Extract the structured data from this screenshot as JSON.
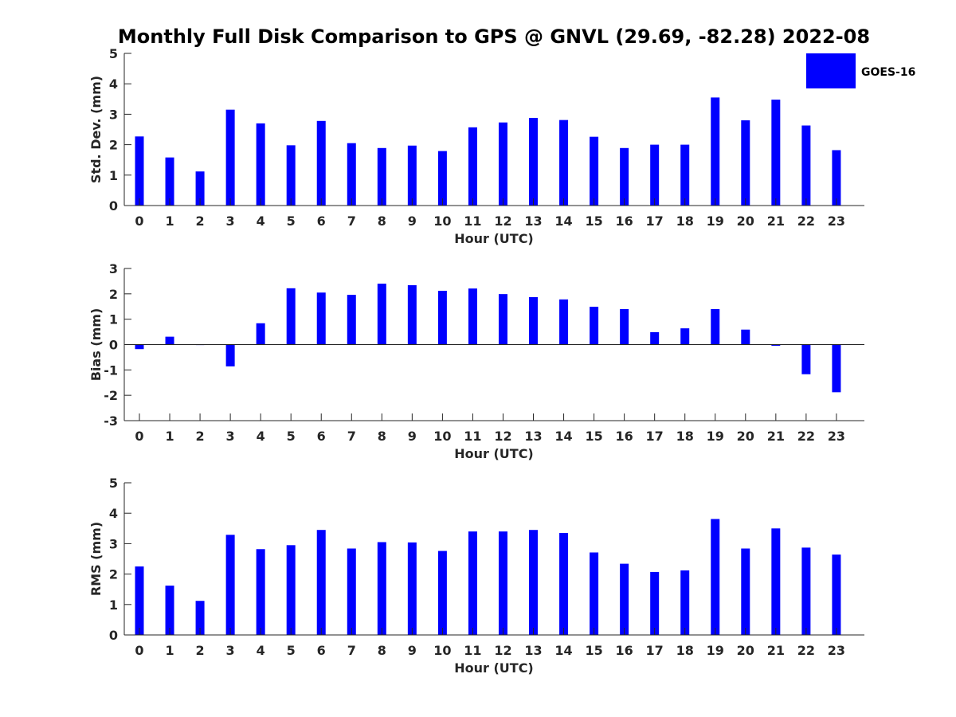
{
  "figure": {
    "title": "Monthly Full Disk Comparison to GPS @ GNVL (29.69, -82.28) 2022-08",
    "bar_color": "#0000FF",
    "axis_color": "#262626"
  },
  "legend": {
    "label": "GOES-16",
    "placement": "top-right"
  },
  "chart_data": [
    {
      "type": "bar",
      "xlabel": "Hour (UTC)",
      "ylabel": "Std. Dev. (mm)",
      "ylim": [
        0,
        5
      ],
      "yticks": [
        0,
        1,
        2,
        3,
        4,
        5
      ],
      "grid": false,
      "categories": [
        "0",
        "1",
        "2",
        "3",
        "4",
        "5",
        "6",
        "7",
        "8",
        "9",
        "10",
        "11",
        "12",
        "13",
        "14",
        "15",
        "16",
        "17",
        "18",
        "19",
        "20",
        "21",
        "22",
        "23"
      ],
      "series": [
        {
          "name": "GOES-16",
          "values": [
            2.27,
            1.58,
            1.12,
            3.15,
            2.7,
            1.98,
            2.78,
            2.05,
            1.89,
            1.97,
            1.79,
            2.57,
            2.73,
            2.88,
            2.81,
            2.26,
            1.89,
            2.0,
            2.0,
            3.55,
            2.8,
            3.48,
            2.63,
            1.82
          ]
        }
      ]
    },
    {
      "type": "bar",
      "xlabel": "Hour (UTC)",
      "ylabel": "Bias (mm)",
      "ylim": [
        -3,
        3
      ],
      "yticks": [
        -3,
        -2,
        -1,
        0,
        1,
        2,
        3
      ],
      "grid": false,
      "categories": [
        "0",
        "1",
        "2",
        "3",
        "4",
        "5",
        "6",
        "7",
        "8",
        "9",
        "10",
        "11",
        "12",
        "13",
        "14",
        "15",
        "16",
        "17",
        "18",
        "19",
        "20",
        "21",
        "22",
        "23"
      ],
      "series": [
        {
          "name": "GOES-16",
          "values": [
            -0.18,
            0.31,
            -0.02,
            -0.86,
            0.84,
            2.22,
            2.05,
            1.96,
            2.4,
            2.34,
            2.12,
            2.21,
            1.99,
            1.87,
            1.78,
            1.49,
            1.4,
            0.49,
            0.64,
            1.4,
            0.59,
            -0.05,
            -1.17,
            -1.88
          ]
        }
      ]
    },
    {
      "type": "bar",
      "xlabel": "Hour (UTC)",
      "ylabel": "RMS (mm)",
      "ylim": [
        0,
        5
      ],
      "yticks": [
        0,
        1,
        2,
        3,
        4,
        5
      ],
      "grid": false,
      "categories": [
        "0",
        "1",
        "2",
        "3",
        "4",
        "5",
        "6",
        "7",
        "8",
        "9",
        "10",
        "11",
        "12",
        "13",
        "14",
        "15",
        "16",
        "17",
        "18",
        "19",
        "20",
        "21",
        "22",
        "23"
      ],
      "series": [
        {
          "name": "GOES-16",
          "values": [
            2.25,
            1.62,
            1.12,
            3.29,
            2.82,
            2.95,
            3.45,
            2.84,
            3.05,
            3.04,
            2.76,
            3.4,
            3.4,
            3.45,
            3.35,
            2.71,
            2.34,
            2.07,
            2.12,
            3.81,
            2.84,
            3.5,
            2.87,
            2.64
          ]
        }
      ]
    }
  ]
}
